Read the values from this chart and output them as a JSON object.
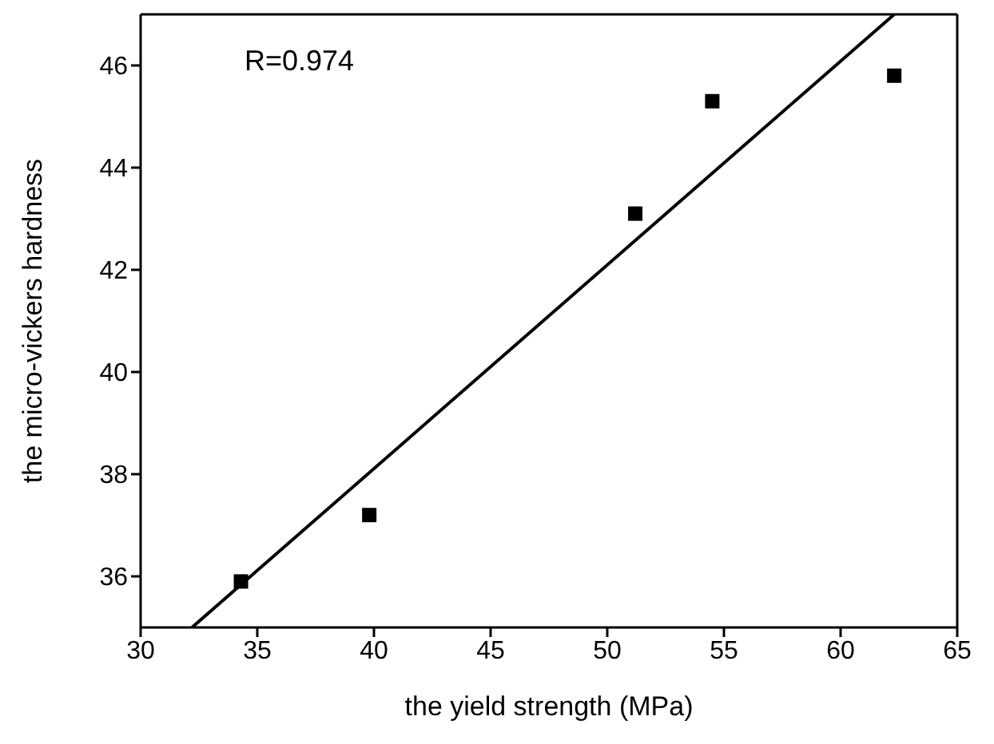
{
  "chart_data": {
    "type": "scatter",
    "xlabel": "the yield strength (MPa)",
    "ylabel": "the micro-vickers hardness",
    "annotations": [
      "R=0.974"
    ],
    "xlim": [
      30,
      65
    ],
    "xticks": [
      30,
      35,
      40,
      45,
      50,
      55,
      60,
      65
    ],
    "ylim": [
      35,
      47
    ],
    "yticks": [
      36,
      38,
      40,
      42,
      44,
      46
    ],
    "legend": false,
    "series": [
      {
        "marker": "square",
        "color": "#000000",
        "x": [
          34.3,
          39.8,
          51.2,
          54.5,
          62.3
        ],
        "values": [
          35.9,
          37.2,
          43.1,
          45.3,
          45.8
        ]
      },
      {
        "type": "line",
        "color": "#000000",
        "x": [
          32.2,
          62.3
        ],
        "values": [
          35,
          47
        ]
      }
    ]
  }
}
